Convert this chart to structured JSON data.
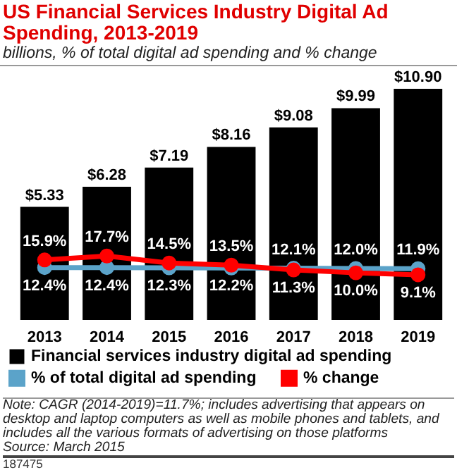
{
  "chart_data": {
    "type": "bar",
    "title": "US Financial Services Industry Digital Ad Spending, 2013-2019",
    "subtitle": "billions, % of total digital ad spending and % change",
    "categories": [
      "2013",
      "2014",
      "2015",
      "2016",
      "2017",
      "2018",
      "2019"
    ],
    "series": [
      {
        "name": "Financial services industry digital ad spending",
        "type": "bar",
        "color": "#000000",
        "values": [
          5.33,
          6.28,
          7.19,
          8.16,
          9.08,
          9.99,
          10.9
        ],
        "value_labels": [
          "$5.33",
          "$6.28",
          "$7.19",
          "$8.16",
          "$9.08",
          "$9.99",
          "$10.90"
        ]
      },
      {
        "name": "% of total digital ad spending",
        "type": "line",
        "axis": "y2",
        "color": "#5ba3c9",
        "values": [
          12.4,
          12.4,
          12.3,
          12.2,
          12.1,
          12.0,
          11.9
        ],
        "value_labels": [
          "12.4%",
          "12.4%",
          "12.3%",
          "12.2%",
          "12.1%",
          "12.0%",
          "11.9%"
        ]
      },
      {
        "name": "% change",
        "type": "line",
        "axis": "y2",
        "color": "#ff0000",
        "values": [
          15.9,
          17.7,
          14.5,
          13.5,
          11.3,
          10.0,
          9.1
        ],
        "value_labels": [
          "15.9%",
          "17.7%",
          "14.5%",
          "13.5%",
          "11.3%",
          "10.0%",
          "9.1%"
        ]
      }
    ],
    "tick_labels": "x",
    "grid": false,
    "legend": "bottom",
    "marker": "circle",
    "line_style": "solid",
    "annotations": [
      "Note: CAGR (2014-2019)=11.7%; includes advertising that appears on desktop and laptop computers as well as mobile phones and tablets, and includes all the various formats of advertising on those platforms",
      "Source: March 2015",
      "187475"
    ]
  }
}
